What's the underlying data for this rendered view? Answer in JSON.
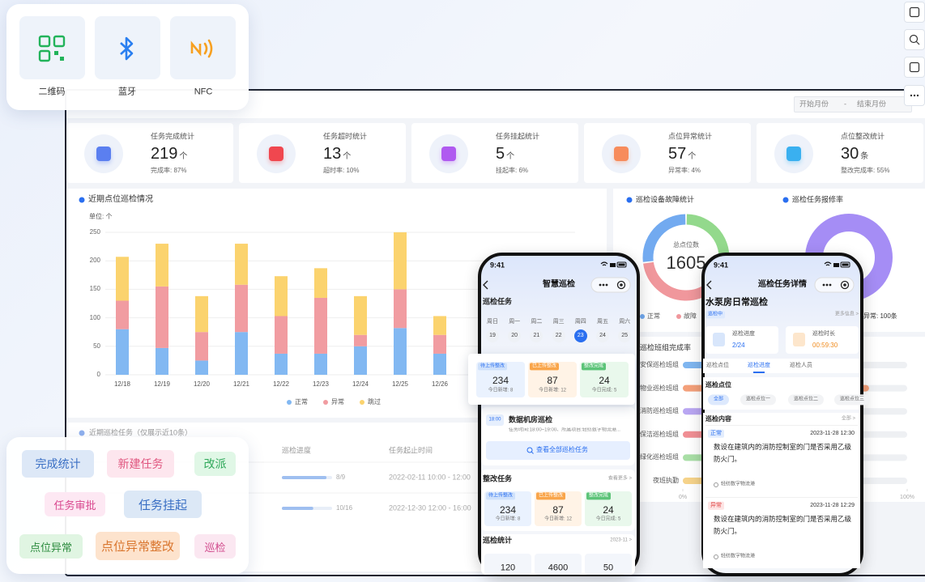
{
  "scan_card": {
    "items": [
      "二维码",
      "蓝牙",
      "NFC"
    ]
  },
  "dashboard": {
    "date_range": {
      "start": "开始月份",
      "separator": "-",
      "end": "结束月份"
    },
    "stats": [
      {
        "title": "任务完成统计",
        "value": 219,
        "unit": "个",
        "rate": "完成率: 87%"
      },
      {
        "title": "任务超时统计",
        "value": 13,
        "unit": "个",
        "rate": "超时率: 10%"
      },
      {
        "title": "任务挂起统计",
        "value": 5,
        "unit": "个",
        "rate": "挂起率: 6%"
      },
      {
        "title": "点位异常统计",
        "value": 57,
        "unit": "个",
        "rate": "异常率: 4%"
      },
      {
        "title": "点位整改统计",
        "value": 30,
        "unit": "条",
        "rate": "整改完成率: 55%"
      }
    ],
    "repair_panel": {
      "title": "巡检任务报修率",
      "note": "点位异常: 100条"
    },
    "task_table": {
      "title": "近期巡检任务（仅展示近10条）",
      "columns": [
        "巡检进度",
        "任务起止时间"
      ],
      "rows": [
        {
          "progress": {
            "done": 8,
            "total": 9,
            "label": "8/9"
          },
          "time": "2022-02-11 10:00 - 12:00"
        },
        {
          "progress": {
            "done": 10,
            "total": 16,
            "label": "10/16"
          },
          "time": "2022-12-30 12:00 - 16:00"
        }
      ]
    }
  },
  "tags": [
    "完成统计",
    "新建任务",
    "改派",
    "任务审批",
    "任务挂起",
    "点位异常",
    "点位异常整改",
    "巡检"
  ],
  "phone_home": {
    "time": "9:41",
    "title": "智慧巡检",
    "section_tasks": "巡检任务",
    "weekdays": [
      "周日",
      "周一",
      "周二",
      "周三",
      "周四",
      "周五",
      "周六"
    ],
    "dates": [
      {
        "day": 19
      },
      {
        "day": 20
      },
      {
        "day": 21
      },
      {
        "day": 22
      },
      {
        "day": 23,
        "selected": true
      },
      {
        "day": 24
      },
      {
        "day": 25
      }
    ],
    "summary": [
      {
        "label": "待上传整改",
        "value": 234,
        "sub": "今日新增: 8"
      },
      {
        "label": "已上传整改",
        "value": 87,
        "sub": "今日新增: 12"
      },
      {
        "label": "整改完成",
        "value": 24,
        "sub": "今日完成: 5"
      }
    ],
    "task": {
      "time": "18:00",
      "name": "数据机房巡检",
      "detail": "任务时间:18:00~19:00、所属项目:轻纺数字物流港..."
    },
    "view_all": "查看全部巡检任务",
    "section_rectify": "整改任务",
    "more": "查看更多 >",
    "rectify": [
      {
        "label": "待上传整改",
        "value": 234,
        "sub": "今日新增: 8"
      },
      {
        "label": "已上传整改",
        "value": 87,
        "sub": "今日新增: 12"
      },
      {
        "label": "整改完成",
        "value": 24,
        "sub": "今日完成: 5"
      }
    ],
    "section_stats": "巡检统计",
    "month": "2023-11 >",
    "stats": [
      120,
      4600,
      50
    ]
  },
  "phone_detail": {
    "time": "9:41",
    "title": "巡检任务详情",
    "name": "水泵房日常巡检",
    "status": "巡检中",
    "more": "更多信息 >",
    "progress": {
      "label": "巡检进度",
      "value": "2/24"
    },
    "duration": {
      "label": "巡检时长",
      "value": "00:59:30"
    },
    "tabs": [
      "巡检点位",
      "巡检进度",
      "巡检人员"
    ],
    "points_title": "巡检点位",
    "chips": [
      "全部",
      "巡检点位一",
      "巡检点位二",
      "巡检点位三"
    ],
    "content_title": "巡检内容",
    "content_filter": "全部 >",
    "records": [
      {
        "status": "正常",
        "time": "2023-11-28 12:30",
        "text": "数设在建筑内的消防控制室的门是否采用乙级防火门。",
        "place": "轻纺数字物流港"
      },
      {
        "status": "异常",
        "time": "2023-11-28 12:29",
        "text": "数设在建筑内的消防控制室的门是否采用乙级防火门。",
        "place": "轻纺数字物流港"
      }
    ]
  },
  "chart_data": [
    {
      "type": "bar",
      "stacked": true,
      "title": "近期点位巡检情况",
      "unit_label": "单位: 个",
      "categories": [
        "12/18",
        "12/19",
        "12/20",
        "12/21",
        "12/22",
        "12/23",
        "12/24",
        "12/25",
        "12/26"
      ],
      "series": [
        {
          "name": "正常",
          "color": "#82b8f2",
          "values": [
            80,
            47,
            25,
            75,
            37,
            37,
            50,
            82,
            37
          ]
        },
        {
          "name": "异常",
          "color": "#f19ca1",
          "values": [
            50,
            108,
            50,
            83,
            66,
            98,
            20,
            68,
            33
          ]
        },
        {
          "name": "跳过",
          "color": "#fbd36e",
          "values": [
            77,
            75,
            63,
            72,
            70,
            52,
            68,
            100,
            33
          ]
        }
      ],
      "ylim": [
        0,
        250
      ],
      "yticks": [
        0,
        50,
        100,
        150,
        200,
        250
      ],
      "grid": true,
      "legend": "bottom"
    },
    {
      "type": "donut",
      "title": "巡检设备故障统计",
      "center_label": "总点位数",
      "center_value": 1605,
      "categories": [
        "正常",
        "故障",
        null
      ],
      "values": [
        27,
        45,
        28
      ],
      "colors": [
        "#72aaf0",
        "#f0979c",
        "#93d98c"
      ],
      "legend": "bottom"
    },
    {
      "type": "hbar",
      "title": "巡检班组完成率",
      "categories": [
        "安保巡检班组",
        "物业巡检班组",
        "消防巡检班组",
        "保洁巡检班组",
        "绿化巡检班组",
        "夜班执勤"
      ],
      "values": [
        62,
        83,
        58,
        45,
        35,
        25
      ],
      "colors": [
        "#7fb6f0",
        "#f4a07a",
        "#b9a6f2",
        "#f08f94",
        "#a9dfa6",
        "#f6d38a"
      ],
      "xlim": [
        0,
        100
      ],
      "xticks": [
        {
          "value": 0,
          "label": "0%"
        },
        {
          "value": 100,
          "label": "100%"
        }
      ]
    }
  ]
}
